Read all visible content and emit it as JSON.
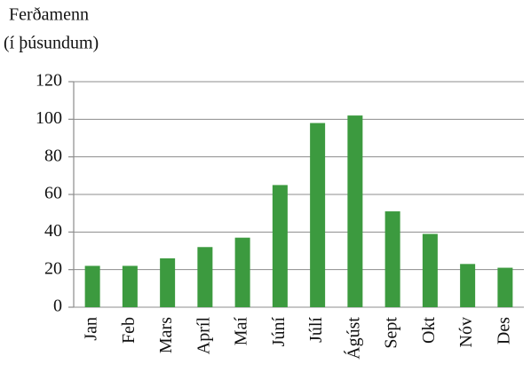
{
  "chart_data": {
    "type": "bar",
    "ylabel": [
      "Ferðamenn",
      "(í þúsundum)"
    ],
    "categories": [
      "Jan",
      "Feb",
      "Mars",
      "Apríl",
      "Maí",
      "Júní",
      "Júlí",
      "Ágúst",
      "Sept",
      "Okt",
      "Nóv",
      "Des"
    ],
    "values": [
      22,
      22,
      26,
      32,
      37,
      65,
      98,
      102,
      51,
      39,
      23,
      21
    ],
    "color": "#3c9a3f",
    "ylim": [
      0,
      120
    ],
    "yticks": [
      0,
      20,
      40,
      60,
      80,
      100,
      120
    ],
    "grid": true
  }
}
